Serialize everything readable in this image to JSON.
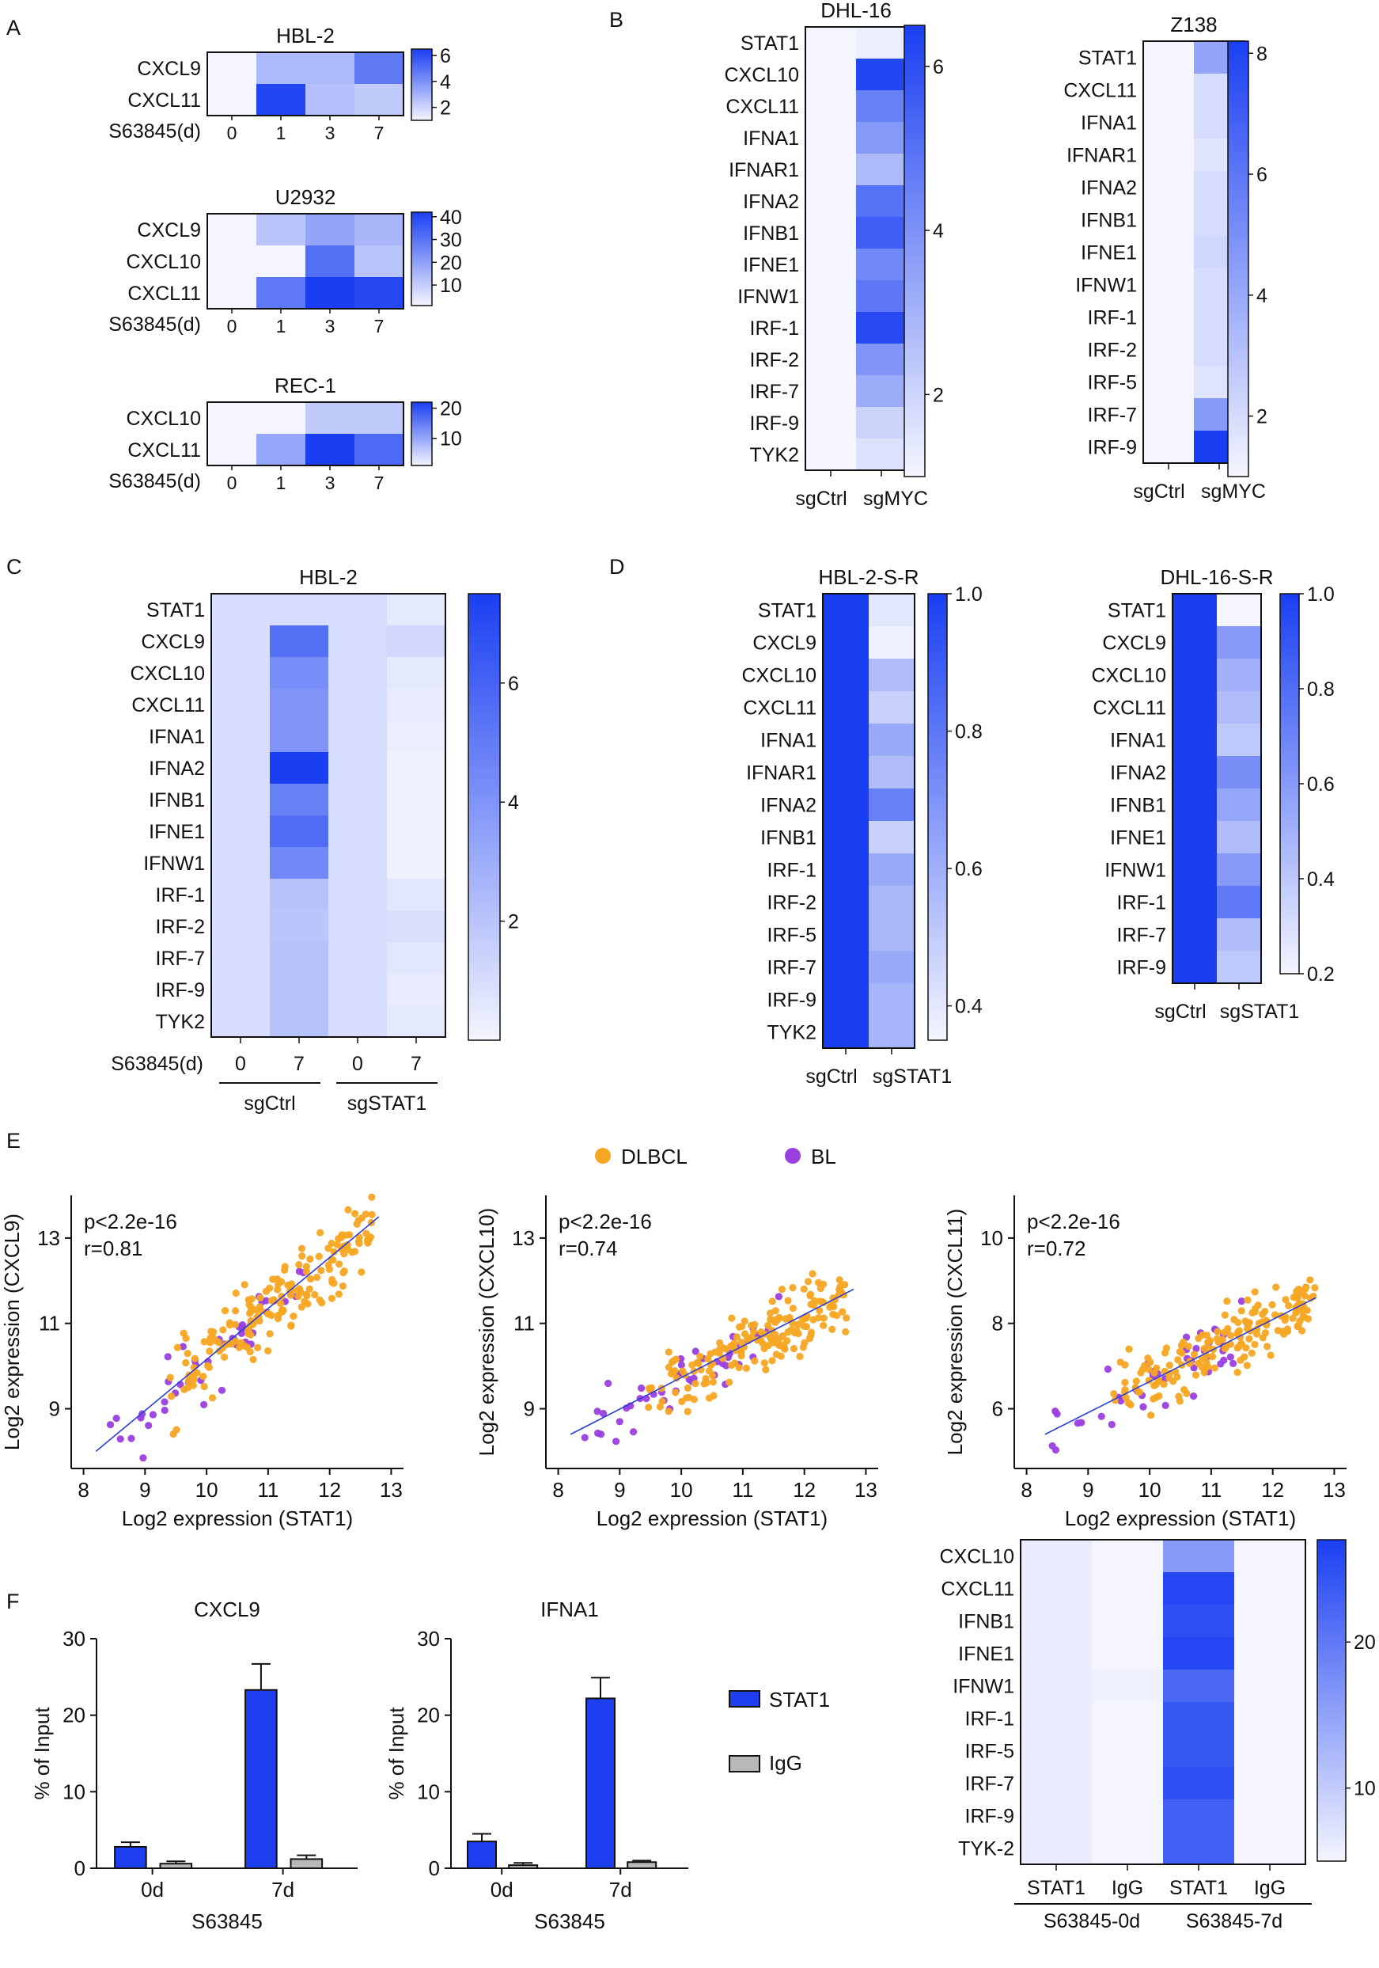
{
  "colors": {
    "max": "#1a3ff2",
    "min": "#ffffff",
    "dlbcl": "#f5a623",
    "bl": "#9a3fe0",
    "fit": "#2b3fd8",
    "stat1_bar": "#1d3ff0",
    "igg_bar": "#b8b8b8"
  },
  "panels": {
    "A": "A",
    "B": "B",
    "C": "C",
    "D": "D",
    "E": "E",
    "F": "F"
  },
  "A": {
    "plots": [
      {
        "title": "HBL-2",
        "rows": [
          "CXCL9",
          "CXCL11"
        ],
        "xlabel": "S63845(d)",
        "cols": [
          "0",
          "1",
          "3",
          "7"
        ],
        "cbar": [
          "6",
          "4",
          "2"
        ],
        "vmin": 1,
        "vmax": 6.5,
        "values": [
          [
            1,
            2.8,
            2.8,
            4.7
          ],
          [
            1,
            6.3,
            2.6,
            2.3
          ]
        ]
      },
      {
        "title": "U2932",
        "rows": [
          "CXCL9",
          "CXCL10",
          "CXCL11"
        ],
        "xlabel": "S63845(d)",
        "cols": [
          "0",
          "1",
          "3",
          "7"
        ],
        "cbar": [
          "40",
          "30",
          "20",
          "10"
        ],
        "vmin": 1,
        "vmax": 42,
        "values": [
          [
            1,
            12,
            19,
            15
          ],
          [
            1,
            1,
            31,
            12
          ],
          [
            1,
            29,
            42,
            40
          ]
        ]
      },
      {
        "title": "REC-1",
        "rows": [
          "CXCL10",
          "CXCL11"
        ],
        "xlabel": "S63845(d)",
        "cols": [
          "0",
          "1",
          "3",
          "7"
        ],
        "cbar": [
          "20",
          "10"
        ],
        "vmin": 1,
        "vmax": 22,
        "values": [
          [
            1,
            1,
            6,
            6
          ],
          [
            1,
            10,
            22,
            17
          ]
        ]
      }
    ]
  },
  "B": {
    "plots": [
      {
        "title": "DHL-16",
        "rows": [
          "STAT1",
          "CXCL10",
          "CXCL11",
          "IFNA1",
          "IFNAR1",
          "IFNA2",
          "IFNB1",
          "IFNE1",
          "IFNW1",
          "IRF-1",
          "IRF-2",
          "IRF-7",
          "IRF-9",
          "TYK2"
        ],
        "cols": [
          "sgCtrl",
          "sgMYC"
        ],
        "cbar": [
          "6",
          "4",
          "2"
        ],
        "vmin": 1,
        "vmax": 6.5,
        "values": [
          1,
          1.2,
          1,
          6.3,
          1,
          4.5,
          1,
          3.8,
          1,
          2.8,
          1,
          5.0,
          1,
          5.6,
          1,
          4.3,
          1,
          4.8,
          1,
          6.2,
          1,
          3.9,
          1,
          3.2,
          1,
          2.0,
          1,
          1.6
        ]
      },
      {
        "title": "Z138",
        "rows": [
          "STAT1",
          "CXCL11",
          "IFNA1",
          "IFNAR1",
          "IFNA2",
          "IFNB1",
          "IFNE1",
          "IFNW1",
          "IRF-1",
          "IRF-2",
          "IRF-5",
          "IRF-7",
          "IRF-9"
        ],
        "cols": [
          "sgCtrl",
          "sgMYC"
        ],
        "cbar": [
          "8",
          "6",
          "4",
          "2"
        ],
        "vmin": 1,
        "vmax": 8.2,
        "values": [
          1,
          4.2,
          1,
          2.0,
          1,
          2.0,
          1,
          1.6,
          1,
          2.0,
          1,
          2.0,
          1,
          2.2,
          1,
          2.0,
          1,
          2.0,
          1,
          2.0,
          1,
          1.7,
          1,
          4.6,
          1,
          8.2
        ]
      }
    ]
  },
  "C": {
    "title": "HBL-2",
    "rows": [
      "STAT1",
      "CXCL9",
      "CXCL10",
      "CXCL11",
      "IFNA1",
      "IFNA2",
      "IFNB1",
      "IFNE1",
      "IFNW1",
      "IRF-1",
      "IRF-2",
      "IRF-7",
      "IRF-9",
      "TYK2"
    ],
    "xlabel": "S63845(d)",
    "cols": [
      "0",
      "7",
      "0",
      "7"
    ],
    "groups": [
      "sgCtrl",
      "sgSTAT1"
    ],
    "cbar": [
      "6",
      "4",
      "2"
    ],
    "vmin": 0,
    "vmax": 7.5,
    "values": [
      [
        1,
        1,
        1,
        0.5
      ],
      [
        1,
        5.5,
        1,
        1.2
      ],
      [
        1,
        4.3,
        1,
        0.5
      ],
      [
        1,
        4.0,
        1,
        0.4
      ],
      [
        1,
        4.0,
        1,
        0.3
      ],
      [
        1,
        7.5,
        1,
        0.2
      ],
      [
        1,
        4.8,
        1,
        0.2
      ],
      [
        1,
        5.6,
        1,
        0.2
      ],
      [
        1,
        4.5,
        1,
        0.2
      ],
      [
        1,
        2.1,
        1,
        0.6
      ],
      [
        1,
        2.0,
        1,
        0.9
      ],
      [
        1,
        2.1,
        1,
        0.6
      ],
      [
        1,
        2.1,
        1,
        0.4
      ],
      [
        1,
        2.1,
        1,
        0.5
      ]
    ]
  },
  "D": {
    "plots": [
      {
        "title": "HBL-2-S-R",
        "rows": [
          "STAT1",
          "CXCL9",
          "CXCL10",
          "CXCL11",
          "IFNA1",
          "IFNAR1",
          "IFNA2",
          "IFNB1",
          "IRF-1",
          "IRF-2",
          "IRF-5",
          "IRF-7",
          "IRF-9",
          "TYK2"
        ],
        "cols": [
          "sgCtrl",
          "sgSTAT1"
        ],
        "cbar": [
          "1.0",
          "0.8",
          "0.6",
          "0.4"
        ],
        "vmin": 0.35,
        "vmax": 1.0,
        "values": [
          1,
          0.4,
          1,
          0.37,
          1,
          0.55,
          1,
          0.48,
          1,
          0.62,
          1,
          0.55,
          1,
          0.77,
          1,
          0.48,
          1,
          0.62,
          1,
          0.57,
          1,
          0.57,
          1,
          0.62,
          1,
          0.58,
          1,
          0.58
        ]
      },
      {
        "title": "DHL-16-S-R",
        "rows": [
          "STAT1",
          "CXCL9",
          "CXCL10",
          "CXCL11",
          "IFNA1",
          "IFNA2",
          "IFNB1",
          "IFNE1",
          "IFNW1",
          "IRF-1",
          "IRF-7",
          "IRF-9"
        ],
        "cols": [
          "sgCtrl",
          "sgSTAT1"
        ],
        "cbar": [
          "1.0",
          "0.8",
          "0.6",
          "0.4",
          "0.2"
        ],
        "vmin": 0.2,
        "vmax": 1.0,
        "values": [
          1,
          0.2,
          1,
          0.6,
          1,
          0.5,
          1,
          0.45,
          1,
          0.4,
          1,
          0.65,
          1,
          0.55,
          1,
          0.45,
          1,
          0.6,
          1,
          0.75,
          1,
          0.45,
          1,
          0.4
        ]
      }
    ]
  },
  "E": {
    "legend": [
      "DLBCL",
      "BL"
    ],
    "plots": [
      {
        "type": "scatter",
        "ylabel": "Log2 expression (CXCL9)",
        "xlabel": "Log2 expression (STAT1)",
        "p": "p<2.2e-16",
        "r": "r=0.81",
        "xlim": [
          7.8,
          13.2
        ],
        "ylim": [
          7.6,
          14.0
        ],
        "xticks": [
          "8",
          "9",
          "10",
          "11",
          "12",
          "13"
        ],
        "yticks": [
          "9",
          "11",
          "13"
        ],
        "fit": [
          [
            8.2,
            8.0
          ],
          [
            12.8,
            13.5
          ]
        ],
        "seed": 11,
        "xcenter": 10.8,
        "slope": 1.2,
        "icpt": -1.9,
        "noise": 0.75
      },
      {
        "type": "scatter",
        "ylabel": "Log2 expression (CXCL10)",
        "xlabel": "Log2 expression (STAT1)",
        "p": "p<2.2e-16",
        "r": "r=0.74",
        "xlim": [
          7.8,
          13.2
        ],
        "ylim": [
          7.6,
          14.0
        ],
        "xticks": [
          "8",
          "9",
          "10",
          "11",
          "12",
          "13"
        ],
        "yticks": [
          "9",
          "11",
          "13"
        ],
        "fit": [
          [
            8.2,
            8.4
          ],
          [
            12.8,
            11.8
          ]
        ],
        "seed": 23,
        "xcenter": 10.8,
        "slope": 0.72,
        "icpt": 2.5,
        "noise": 0.65
      },
      {
        "type": "scatter",
        "ylabel": "Log2 expression (CXCL11)",
        "xlabel": "Log2 expression (STAT1)",
        "p": "p<2.2e-16",
        "r": "r=0.72",
        "xlim": [
          7.8,
          13.2
        ],
        "ylim": [
          4.6,
          11.0
        ],
        "xticks": [
          "8",
          "9",
          "10",
          "11",
          "12",
          "13"
        ],
        "yticks": [
          "6",
          "8",
          "10"
        ],
        "fit": [
          [
            8.3,
            5.4
          ],
          [
            12.7,
            8.6
          ]
        ],
        "seed": 37,
        "xcenter": 10.8,
        "slope": 0.74,
        "icpt": -0.75,
        "noise": 0.6
      }
    ]
  },
  "F": {
    "bars": [
      {
        "title": "CXCL9",
        "ylabel": "% of Input",
        "xlabel": "S63845",
        "groups": [
          "0d",
          "7d"
        ],
        "yticks": [
          "0",
          "10",
          "20",
          "30"
        ],
        "ymax": 30,
        "stat1": [
          2.8,
          23.3
        ],
        "stat1_err": [
          0.6,
          3.4
        ],
        "igg": [
          0.6,
          1.2
        ],
        "igg_err": [
          0.3,
          0.5
        ]
      },
      {
        "title": "IFNA1",
        "ylabel": "% of Input",
        "xlabel": "S63845",
        "groups": [
          "0d",
          "7d"
        ],
        "yticks": [
          "0",
          "10",
          "20",
          "30"
        ],
        "ymax": 30,
        "stat1": [
          3.5,
          22.2
        ],
        "stat1_err": [
          1.0,
          2.7
        ],
        "igg": [
          0.4,
          0.8
        ],
        "igg_err": [
          0.3,
          0.2
        ]
      }
    ],
    "legend": [
      "STAT1",
      "IgG"
    ],
    "heat": {
      "rows": [
        "CXCL10",
        "CXCL11",
        "IFNB1",
        "IFNE1",
        "IFNW1",
        "IRF-1",
        "IRF-5",
        "IRF-7",
        "IRF-9",
        "TYK-2"
      ],
      "cols": [
        "STAT1",
        "IgG",
        "STAT1",
        "IgG"
      ],
      "groups": [
        "S63845-0d",
        "S63845-7d"
      ],
      "cbar": [
        "20",
        "10"
      ],
      "vmin": 5,
      "vmax": 27,
      "values": [
        [
          6,
          5,
          16,
          5
        ],
        [
          6,
          5,
          26,
          5
        ],
        [
          6,
          5,
          25,
          5
        ],
        [
          6,
          5,
          26,
          5
        ],
        [
          6,
          5.5,
          22,
          5
        ],
        [
          6,
          5,
          24,
          5
        ],
        [
          6,
          5,
          24,
          5
        ],
        [
          6,
          5,
          25,
          5
        ],
        [
          6,
          5,
          23,
          5
        ],
        [
          6,
          5,
          23,
          5
        ]
      ]
    }
  }
}
